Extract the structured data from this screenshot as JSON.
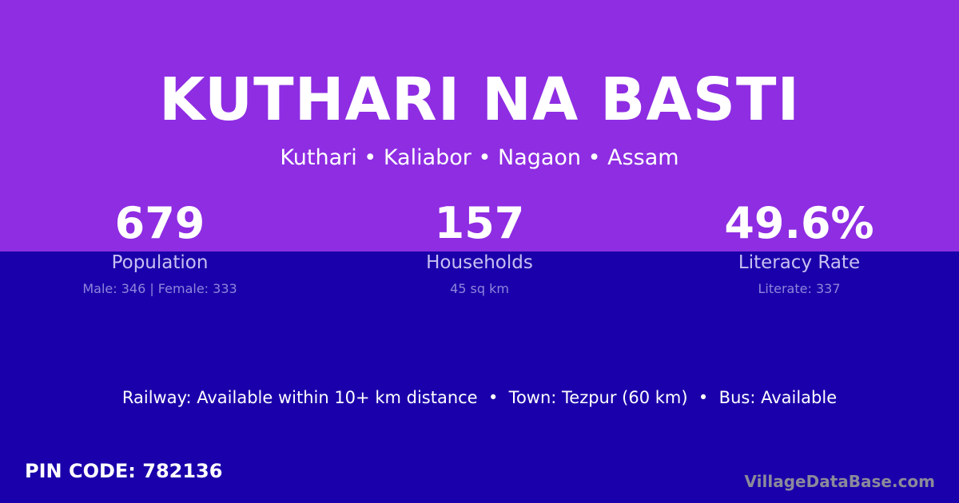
{
  "title": "KUTHARI NA BASTI",
  "subtitle": "Kuthari • Kaliabor • Nagaon • Assam",
  "stats": [
    {
      "value": "679",
      "label": "Population",
      "detail": "Male: 346 | Female: 333"
    },
    {
      "value": "157",
      "label": "Households",
      "detail": "45 sq km"
    },
    {
      "value": "49.6%",
      "label": "Literacy Rate",
      "detail": "Literate: 337"
    }
  ],
  "info": "Railway: Available within 10+ km distance  •  Town: Tezpur (60 km)  •  Bus: Available",
  "pin": "PIN CODE: 782136",
  "brand": "VillageDataBase.com",
  "colors": {
    "top": "#8e2de2",
    "bottom": "#1a00aa"
  }
}
